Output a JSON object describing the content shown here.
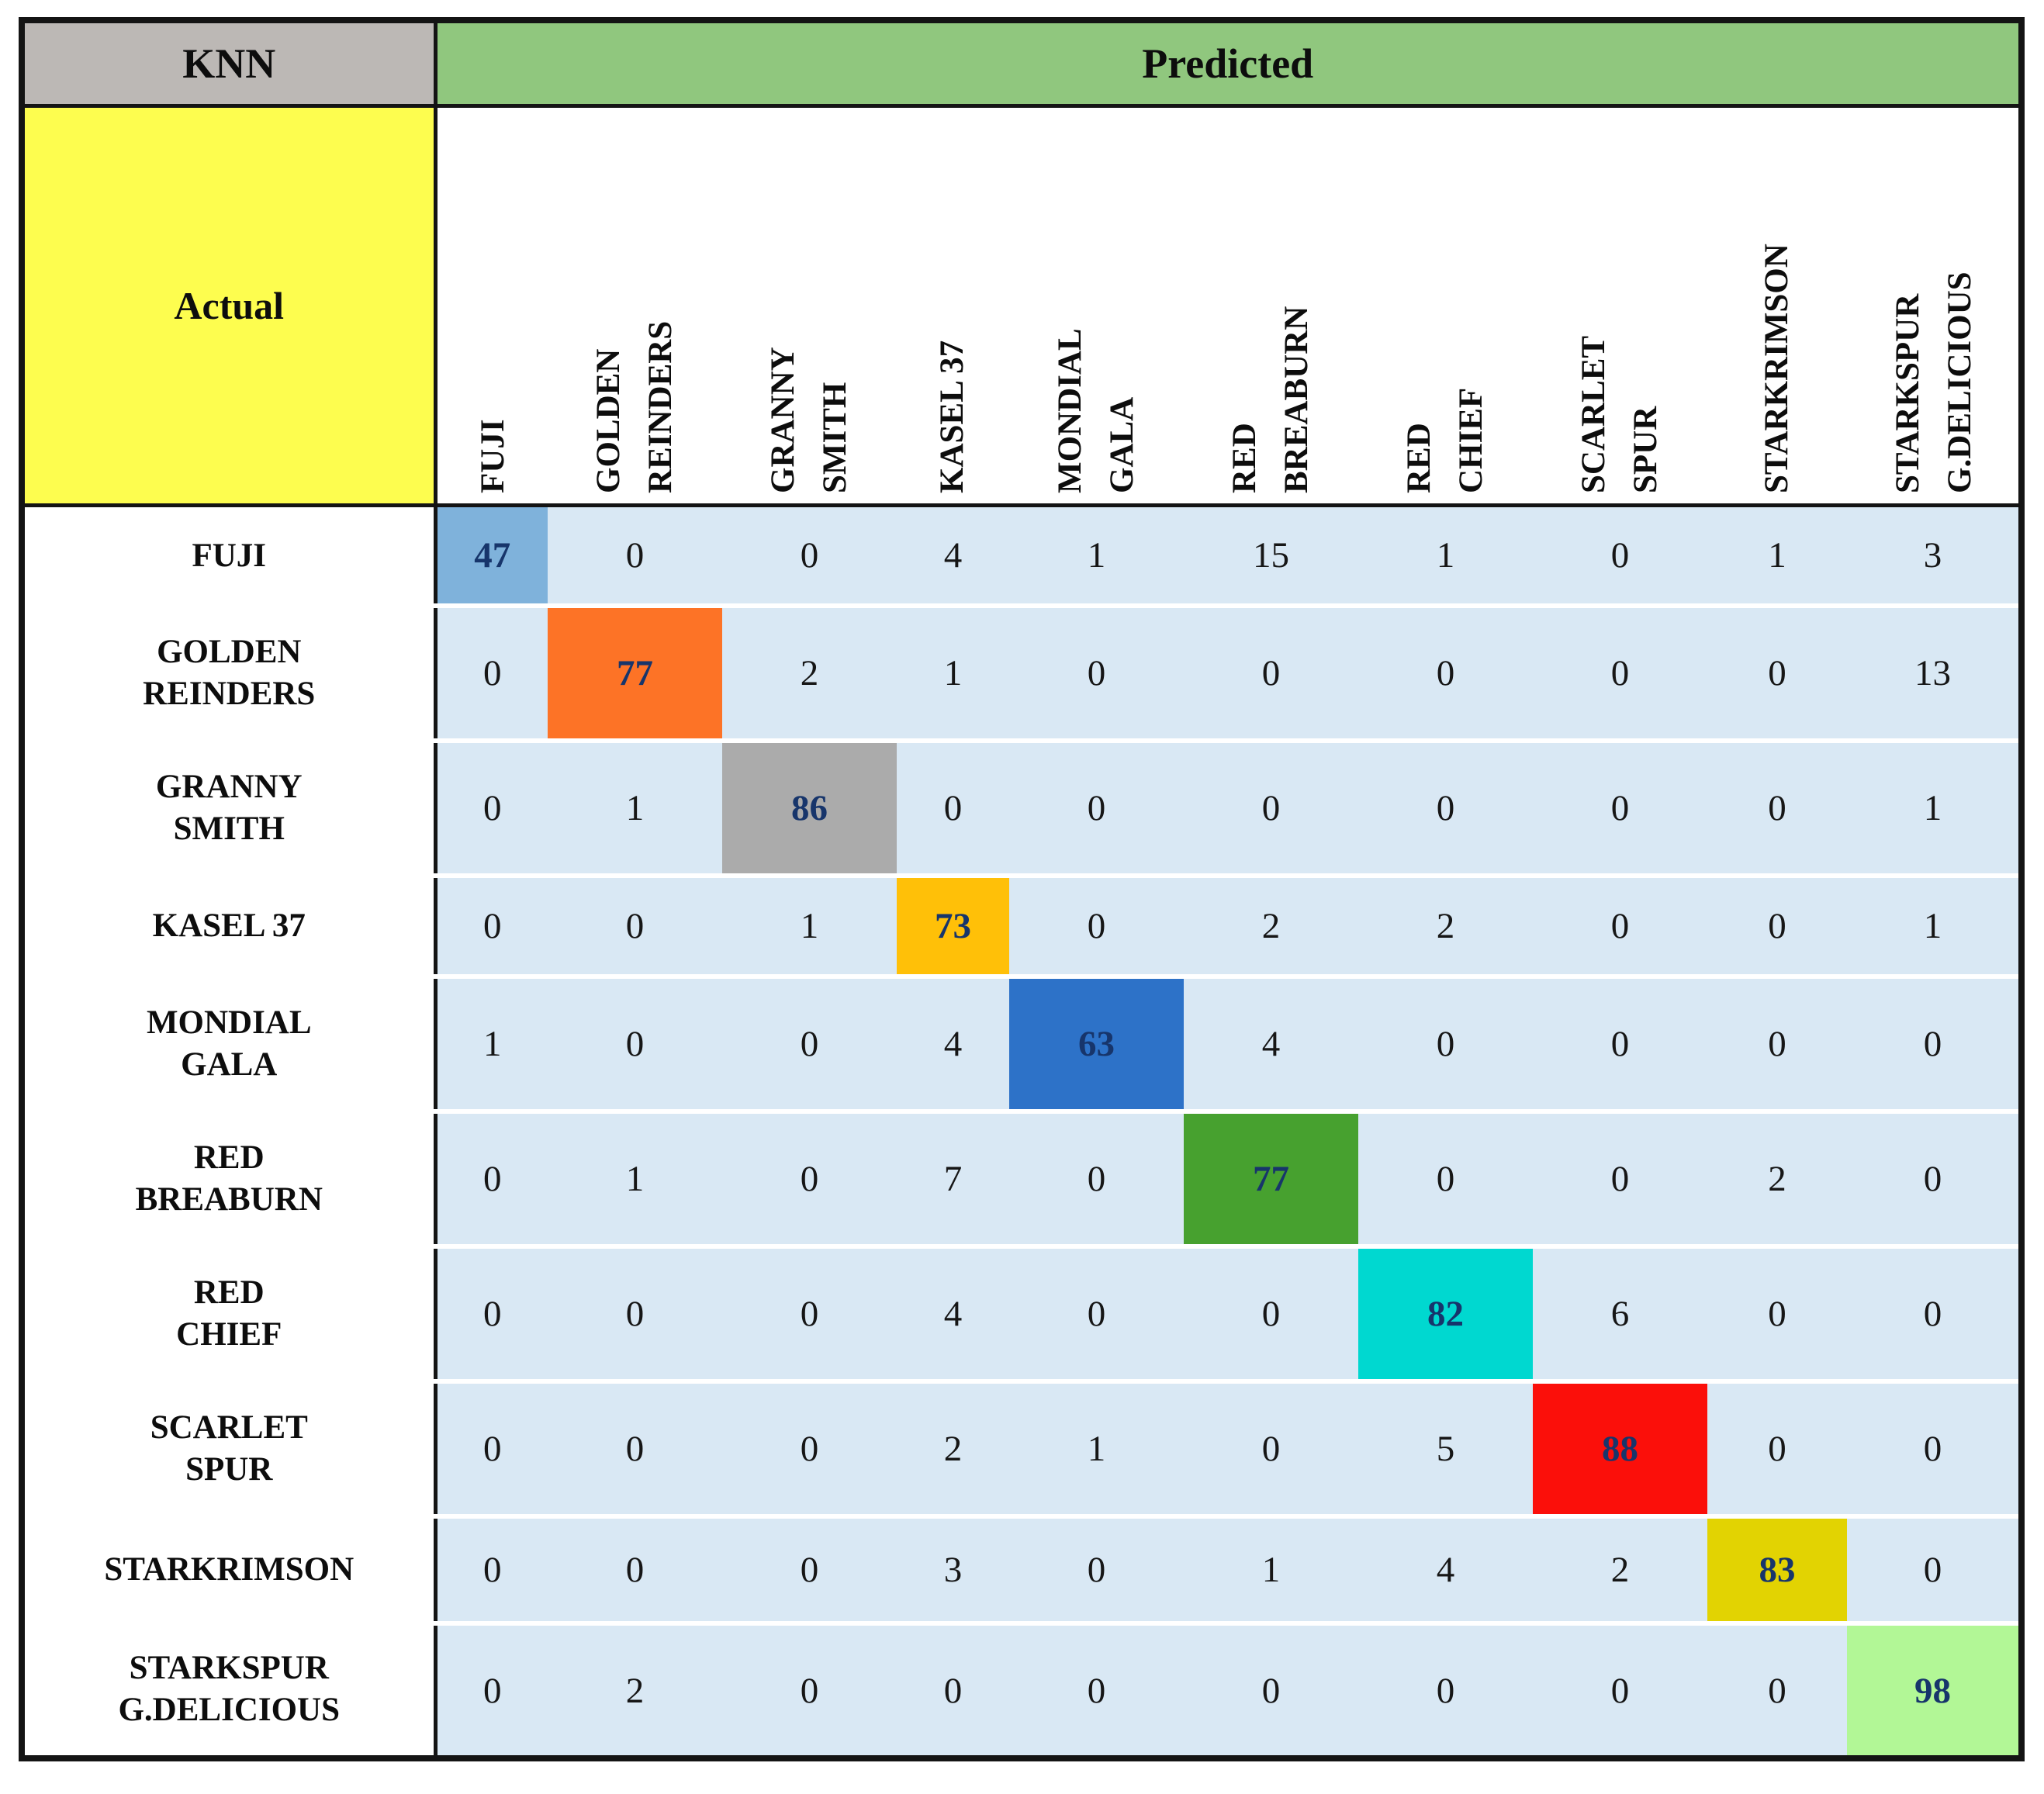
{
  "header": {
    "model": "KNN",
    "predicted": "Predicted",
    "actual": "Actual"
  },
  "classes": [
    {
      "name": "FUJI",
      "lines": [
        "FUJI"
      ]
    },
    {
      "name": "GOLDEN REINDERS",
      "lines": [
        "GOLDEN",
        "REINDERS"
      ]
    },
    {
      "name": "GRANNY SMITH",
      "lines": [
        "GRANNY",
        "SMITH"
      ]
    },
    {
      "name": "KASEL 37",
      "lines": [
        "KASEL 37"
      ]
    },
    {
      "name": "MONDIAL GALA",
      "lines": [
        "MONDIAL",
        "GALA"
      ]
    },
    {
      "name": "RED BREABURN",
      "lines": [
        "RED",
        "BREABURN"
      ]
    },
    {
      "name": "RED CHIEF",
      "lines": [
        "RED",
        "CHIEF"
      ]
    },
    {
      "name": "SCARLET SPUR",
      "lines": [
        "SCARLET",
        "SPUR"
      ]
    },
    {
      "name": "STARKRIMSON",
      "lines": [
        "STARKRIMSON"
      ]
    },
    {
      "name": "STARKSPUR G.DELICIOUS",
      "lines": [
        "STARKSPUR",
        "G.DELICIOUS"
      ]
    }
  ],
  "chart_data": {
    "type": "heatmap",
    "title": "KNN",
    "xlabel": "Predicted",
    "ylabel": "Actual",
    "categories": [
      "FUJI",
      "GOLDEN REINDERS",
      "GRANNY SMITH",
      "KASEL 37",
      "MONDIAL GALA",
      "RED BREABURN",
      "RED CHIEF",
      "SCARLET SPUR",
      "STARKRIMSON",
      "STARKSPUR G.DELICIOUS"
    ],
    "matrix": [
      [
        47,
        0,
        0,
        4,
        1,
        15,
        1,
        0,
        1,
        3
      ],
      [
        0,
        77,
        2,
        1,
        0,
        0,
        0,
        0,
        0,
        13
      ],
      [
        0,
        1,
        86,
        0,
        0,
        0,
        0,
        0,
        0,
        1
      ],
      [
        0,
        0,
        1,
        73,
        0,
        2,
        2,
        0,
        0,
        1
      ],
      [
        1,
        0,
        0,
        4,
        63,
        4,
        0,
        0,
        0,
        0
      ],
      [
        0,
        1,
        0,
        7,
        0,
        77,
        0,
        0,
        2,
        0
      ],
      [
        0,
        0,
        0,
        4,
        0,
        0,
        82,
        6,
        0,
        0
      ],
      [
        0,
        0,
        0,
        2,
        1,
        0,
        5,
        88,
        0,
        0
      ],
      [
        0,
        0,
        0,
        3,
        0,
        1,
        4,
        2,
        83,
        0
      ],
      [
        0,
        2,
        0,
        0,
        0,
        0,
        0,
        0,
        0,
        98
      ]
    ],
    "diagonal_values": [
      47,
      77,
      86,
      73,
      63,
      77,
      82,
      88,
      83,
      98
    ],
    "diagonal_colors": [
      "#7fb2db",
      "#fd7326",
      "#ababab",
      "#ffc008",
      "#2d72c8",
      "#47a12f",
      "#00d8d0",
      "#fb0f0a",
      "#e2d302",
      "#b2f796"
    ],
    "legend": "none",
    "grid": "white row separators on light-blue matrix background"
  },
  "colors": {
    "knn_bg": "#bcb8b5",
    "predicted_bg": "#90c77e",
    "actual_bg": "#fdfd4f",
    "matrix_bg": "#d9e8f4",
    "diagonal_text": "#17356b",
    "number_text": "#161616",
    "border": "#141414",
    "row_separator": "#ffffff"
  }
}
